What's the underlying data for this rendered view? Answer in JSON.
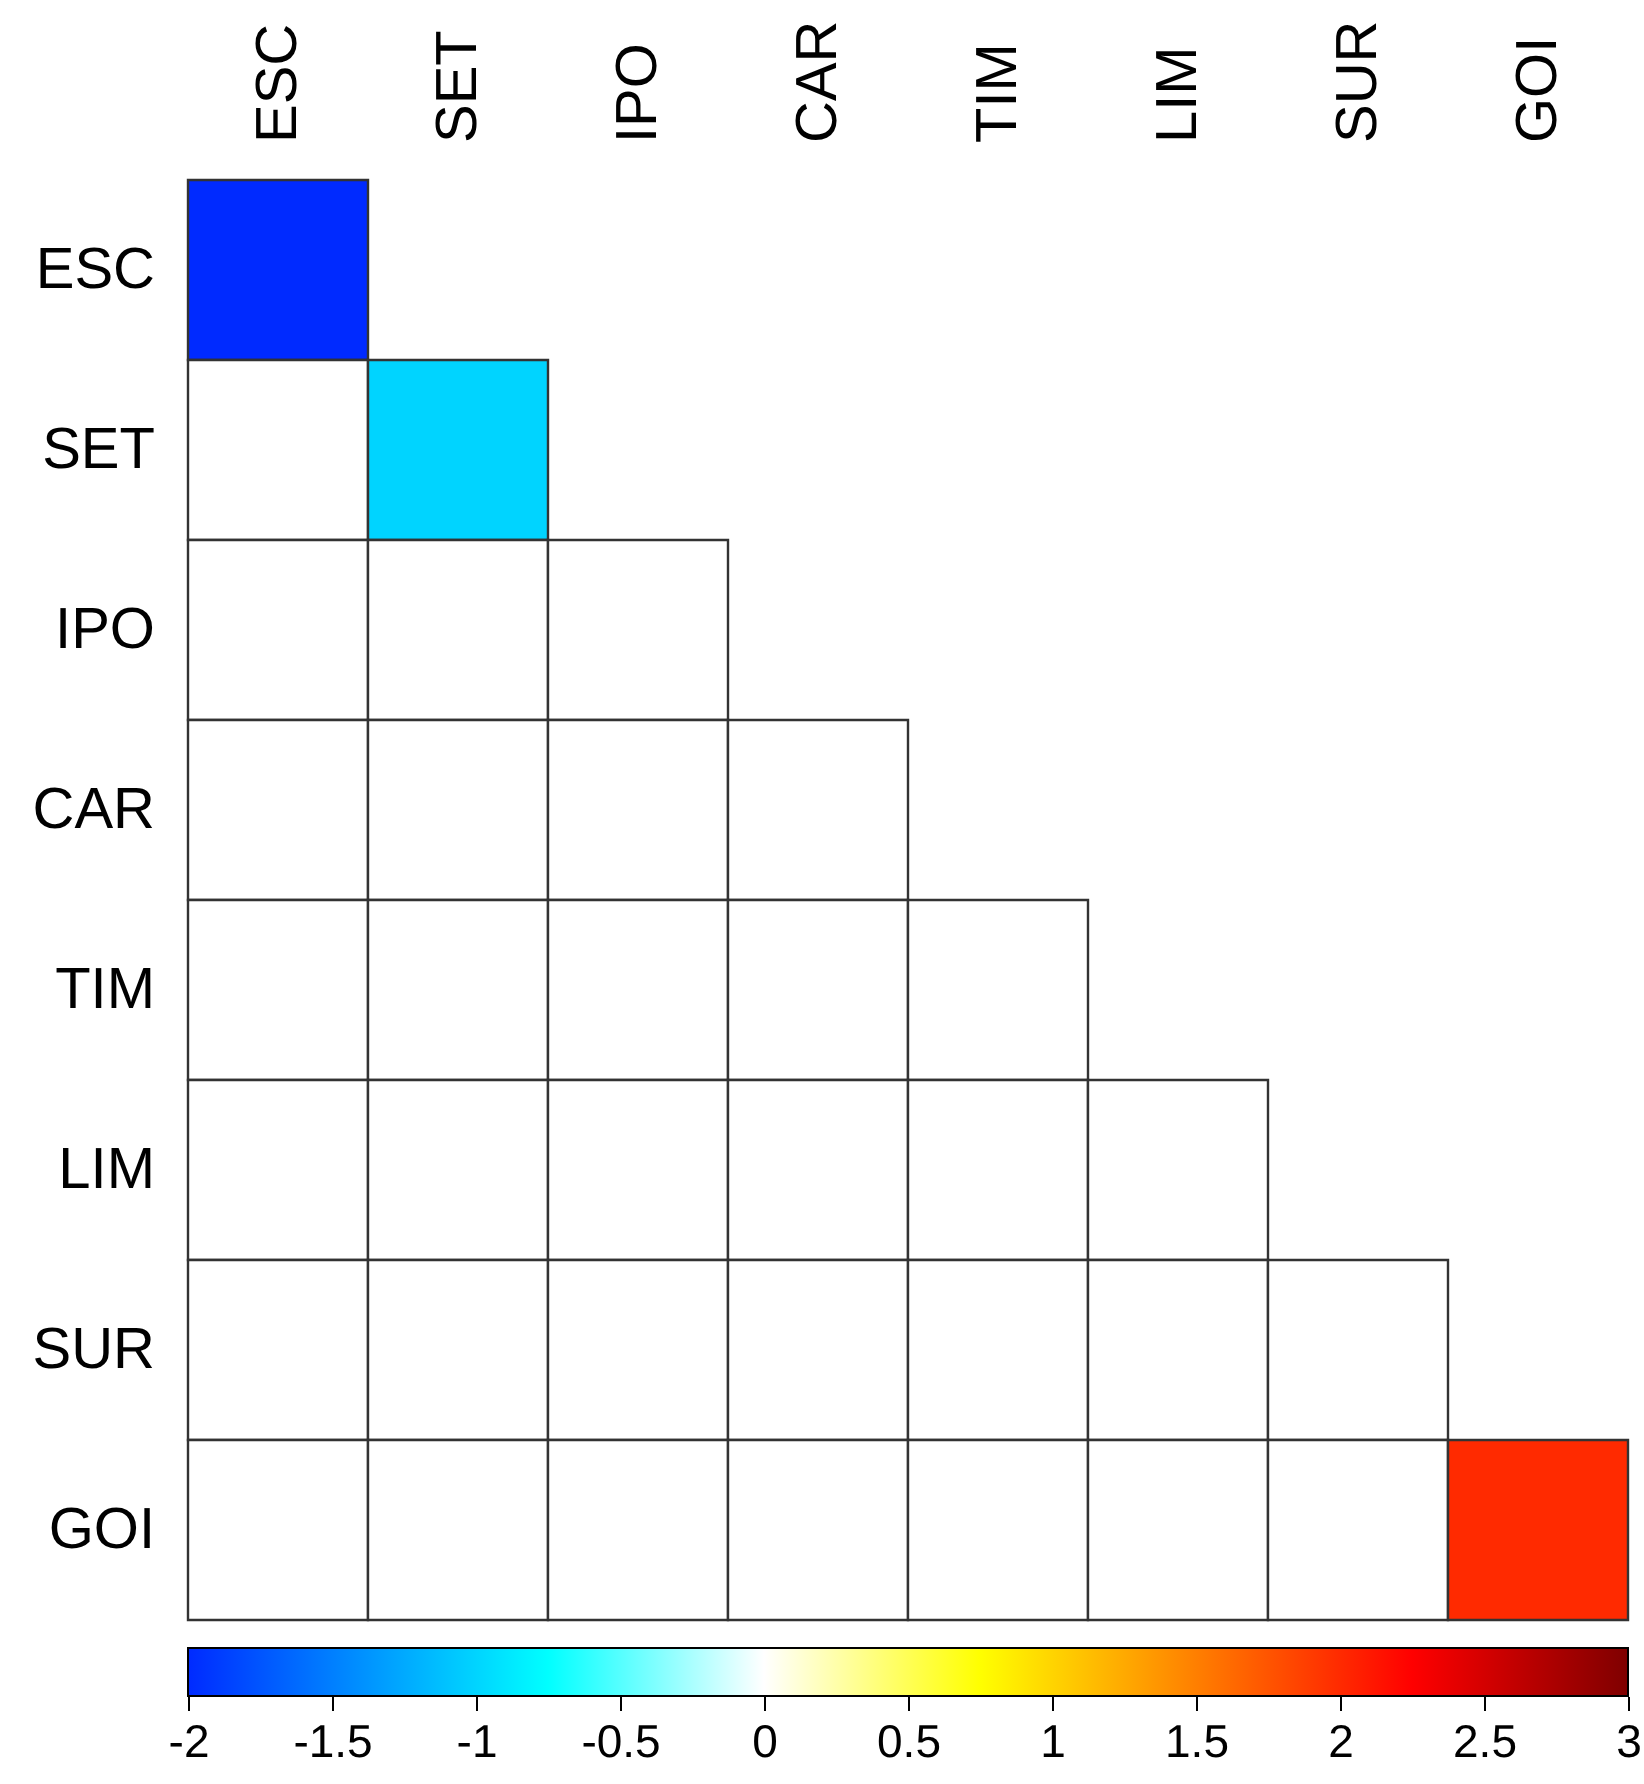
{
  "chart_data": {
    "type": "heatmap",
    "categories": [
      "ESC",
      "SET",
      "IPO",
      "CAR",
      "TIM",
      "LIM",
      "SUR",
      "GOI"
    ],
    "y_categories": [
      "ESC",
      "SET",
      "IPO",
      "CAR",
      "TIM",
      "LIM",
      "SUR",
      "GOI"
    ],
    "cells": [
      [
        -2,
        null,
        null,
        null,
        null,
        null,
        null,
        null
      ],
      [
        0,
        -1,
        null,
        null,
        null,
        null,
        null,
        null
      ],
      [
        0,
        0,
        0,
        null,
        null,
        null,
        null,
        null
      ],
      [
        0,
        0,
        0,
        0,
        null,
        null,
        null,
        null
      ],
      [
        0,
        0,
        0,
        0,
        0,
        null,
        null,
        null
      ],
      [
        0,
        0,
        0,
        0,
        0,
        0,
        null,
        null
      ],
      [
        0,
        0,
        0,
        0,
        0,
        0,
        0,
        null
      ],
      [
        0,
        0,
        0,
        0,
        0,
        0,
        0,
        2
      ]
    ],
    "clim": [
      -2,
      3
    ],
    "cticks": [
      -2,
      -1.5,
      -1,
      -0.5,
      0,
      0.5,
      1,
      1.5,
      2,
      2.5,
      3
    ]
  }
}
